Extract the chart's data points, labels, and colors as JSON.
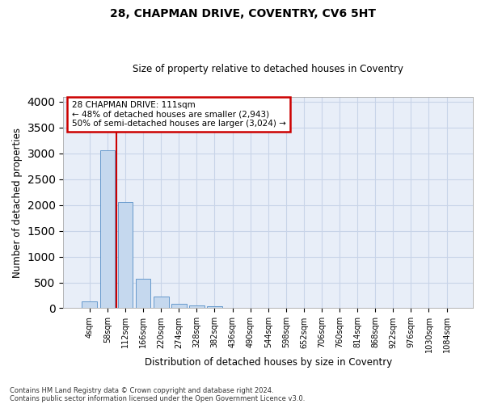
{
  "title": "28, CHAPMAN DRIVE, COVENTRY, CV6 5HT",
  "subtitle": "Size of property relative to detached houses in Coventry",
  "xlabel": "Distribution of detached houses by size in Coventry",
  "ylabel": "Number of detached properties",
  "footer_line1": "Contains HM Land Registry data © Crown copyright and database right 2024.",
  "footer_line2": "Contains public sector information licensed under the Open Government Licence v3.0.",
  "annotation_line1": "28 CHAPMAN DRIVE: 111sqm",
  "annotation_line2": "← 48% of detached houses are smaller (2,943)",
  "annotation_line3": "50% of semi-detached houses are larger (3,024) →",
  "bar_color": "#c5d8ee",
  "bar_edge_color": "#6699cc",
  "vline_color": "#cc0000",
  "annotation_box_edgecolor": "#cc0000",
  "annotation_box_facecolor": "#ffffff",
  "grid_color": "#c8d4e8",
  "bg_color": "#e8eef8",
  "categories": [
    "4sqm",
    "58sqm",
    "112sqm",
    "166sqm",
    "220sqm",
    "274sqm",
    "328sqm",
    "382sqm",
    "436sqm",
    "490sqm",
    "544sqm",
    "598sqm",
    "652sqm",
    "706sqm",
    "760sqm",
    "814sqm",
    "868sqm",
    "922sqm",
    "976sqm",
    "1030sqm",
    "1084sqm"
  ],
  "values": [
    140,
    3060,
    2060,
    570,
    230,
    80,
    55,
    40,
    0,
    0,
    0,
    0,
    0,
    0,
    0,
    0,
    0,
    0,
    0,
    0,
    0
  ],
  "vline_x": 1.5,
  "ylim": [
    0,
    4100
  ],
  "yticks": [
    0,
    500,
    1000,
    1500,
    2000,
    2500,
    3000,
    3500,
    4000
  ]
}
